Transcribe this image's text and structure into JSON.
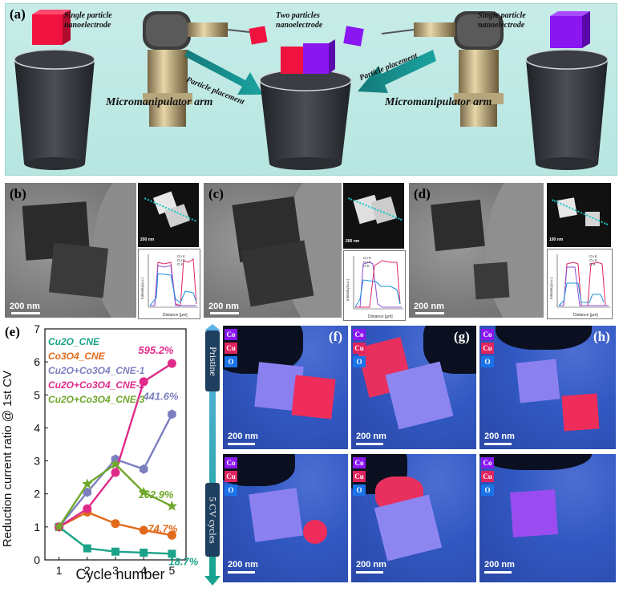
{
  "panels": {
    "a": {
      "label": "(a)",
      "single_left": "Single particle\nnanoelectrode",
      "two": "Two particles\nnanoelectrode",
      "single_right": "Single particle\nnanoelectrode",
      "placement_left": "Particle placement",
      "placement_right": "Particle placement",
      "arm_left": "Micromanipulator arm",
      "arm_right": "Micromanipulator arm",
      "colors": {
        "cu2o": "#f0133f",
        "co3o4": "#8a16f0",
        "base": "#2f3338"
      }
    },
    "b": {
      "label": "(b)",
      "scale": "200 nm",
      "stem_scale": "200 nm"
    },
    "c": {
      "label": "(c)",
      "scale": "200 nm",
      "stem_scale": "200 nm"
    },
    "d": {
      "label": "(d)",
      "scale": "200 nm",
      "stem_scale": "100 nm"
    },
    "e": {
      "label": "(e)"
    },
    "f": {
      "label": "(f)"
    },
    "g": {
      "label": "(g)"
    },
    "h": {
      "label": "(h)"
    }
  },
  "lineprofile": {
    "legend": [
      "Co K",
      "Cu K",
      "O K"
    ],
    "xlabel": "Distance [µm]",
    "ylabel": "Intensity(a.u.)",
    "colors": {
      "co": "#8a4fd6",
      "cu": "#e0245e",
      "o": "#1a8fe0"
    }
  },
  "eds_legend": [
    "Co",
    "Cu",
    "O"
  ],
  "eds_colors": {
    "co": "#8a16f0",
    "cu": "#e0245e",
    "o": "#1a73e8"
  },
  "eds_scale": "200 nm",
  "stage": {
    "top": "Pristine",
    "bottom": "5 CV cycles"
  },
  "chart_data": {
    "type": "line",
    "xlabel": "Cycle number",
    "ylabel": "Reduction current ratio @ 1st CV",
    "xlim": [
      0.5,
      5.5
    ],
    "ylim": [
      0,
      7
    ],
    "xticks": [
      1,
      2,
      3,
      4,
      5
    ],
    "yticks": [
      0,
      1,
      2,
      3,
      4,
      5,
      6,
      7
    ],
    "x": [
      1,
      2,
      3,
      4,
      5
    ],
    "series": [
      {
        "name": "Cu2O_CNE",
        "color": "#1aa388",
        "marker": "square",
        "values": [
          1.0,
          0.35,
          0.25,
          0.22,
          0.187
        ],
        "end_label": "18.7%"
      },
      {
        "name": "Co3O4_CNE",
        "color": "#e06a1a",
        "marker": "circle",
        "values": [
          1.0,
          1.45,
          1.1,
          0.9,
          0.747
        ],
        "end_label": "74.7%"
      },
      {
        "name": "Cu2O+Co3O4_CNE-1",
        "color": "#7b7fc0",
        "marker": "hexagon",
        "values": [
          1.0,
          2.05,
          3.05,
          2.75,
          4.416
        ],
        "end_label": "441.6%"
      },
      {
        "name": "Cu2O+Co3O4_CNE-2",
        "color": "#e02a8a",
        "marker": "circle",
        "values": [
          1.0,
          1.55,
          2.65,
          5.4,
          5.952
        ],
        "end_label": "595.2%"
      },
      {
        "name": "Cu2O+Co3O4_CNE-3",
        "color": "#6fa82a",
        "marker": "star",
        "values": [
          1.0,
          2.3,
          2.9,
          2.05,
          1.629
        ],
        "end_label": "162.9%"
      }
    ]
  }
}
